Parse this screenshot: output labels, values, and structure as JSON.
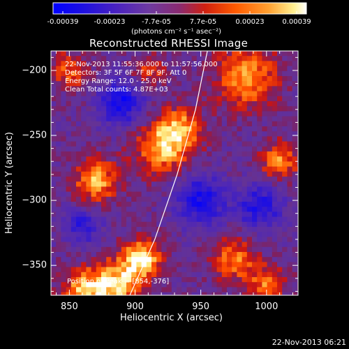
{
  "chart_data": {
    "type": "heatmap",
    "title": "Reconstructed RHESSI Image",
    "xlabel": "Heliocentric X (arcsec)",
    "ylabel": "Heliocentric Y (arcsec)",
    "xlim": [
      836,
      1024
    ],
    "ylim": [
      -373,
      -185
    ],
    "x_ticks": [
      "850",
      "900",
      "950",
      "1000"
    ],
    "y_ticks": [
      "-200",
      "-250",
      "-300",
      "-350"
    ],
    "colorbar": {
      "ticks": [
        "-0.00039",
        "-0.00023",
        "-7.7e-05",
        "7.7e-05",
        "0.00023",
        "0.00039"
      ],
      "unit": "(photons cm⁻² s⁻¹ asec⁻²)",
      "range": [
        -0.00039,
        0.00039
      ],
      "colors": [
        "#0000ff",
        "#4020c0",
        "#6a3aa0",
        "#c02020",
        "#ff5010",
        "#ffa020",
        "#ffff80",
        "#ffffff"
      ]
    },
    "annotations": [
      "22-Nov-2013 11:55:36.000 to 11:57:56.000",
      "Detectors: 3F 5F 6F 7F 8F 9F, Att 0",
      "Energy Range: 12.0 - 25.0 keV",
      "Clean     Total counts: 4.87E+03"
    ],
    "peak_label": "Position of Peak = [854,-376]",
    "limb_curve": [
      [
        896,
        -373
      ],
      [
        915,
        -330
      ],
      [
        932,
        -280
      ],
      [
        946,
        -230
      ],
      [
        955,
        -185
      ]
    ],
    "emission_blobs": [
      {
        "x": 905,
        "y": -345,
        "level": 0.95,
        "r": 14
      },
      {
        "x": 885,
        "y": -365,
        "level": 0.85,
        "r": 18
      },
      {
        "x": 860,
        "y": -370,
        "level": 0.7,
        "r": 16
      },
      {
        "x": 870,
        "y": -285,
        "level": 0.75,
        "r": 16
      },
      {
        "x": 920,
        "y": -260,
        "level": 0.7,
        "r": 20
      },
      {
        "x": 935,
        "y": -245,
        "level": 0.65,
        "r": 16
      },
      {
        "x": 985,
        "y": -205,
        "level": 0.75,
        "r": 22
      },
      {
        "x": 1010,
        "y": -270,
        "level": 0.65,
        "r": 14
      },
      {
        "x": 975,
        "y": -345,
        "level": 0.65,
        "r": 16
      },
      {
        "x": 1000,
        "y": -365,
        "level": 0.6,
        "r": 14
      },
      {
        "x": 850,
        "y": -200,
        "level": 0.55,
        "r": 14
      },
      {
        "x": 910,
        "y": -200,
        "level": 0.5,
        "r": 12
      }
    ],
    "negative_blobs": [
      {
        "x": 890,
        "y": -225,
        "level": -0.8,
        "r": 16
      },
      {
        "x": 950,
        "y": -300,
        "level": -0.75,
        "r": 18
      },
      {
        "x": 995,
        "y": -305,
        "level": -0.7,
        "r": 16
      },
      {
        "x": 860,
        "y": -320,
        "level": -0.55,
        "r": 14
      }
    ]
  },
  "footer": {
    "date": "22-Nov-2013 06:21"
  }
}
